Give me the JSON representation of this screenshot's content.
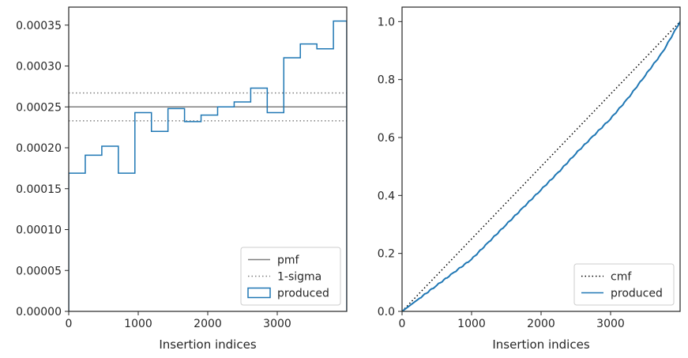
{
  "chart_data": [
    {
      "type": "histogram",
      "xlabel": "Insertion indices",
      "ylabel": "",
      "xlim": [
        0,
        4000
      ],
      "ylim": [
        0,
        0.000372
      ],
      "xticks": [
        "0",
        "1000",
        "2000",
        "3000"
      ],
      "yticks": [
        "0.00000",
        "0.00005",
        "0.00010",
        "0.00015",
        "0.00020",
        "0.00025",
        "0.00030",
        "0.00035"
      ],
      "bin_edges": [
        0,
        238,
        476,
        714,
        952,
        1190,
        1428,
        1666,
        1904,
        2142,
        2380,
        2618,
        2856,
        3094,
        3332,
        3570,
        3808,
        4000
      ],
      "series": [
        {
          "name": "produced",
          "style": "step",
          "color": "#1f77b4",
          "values": [
            0.000169,
            0.000191,
            0.000202,
            0.000169,
            0.000243,
            0.00022,
            0.000248,
            0.000232,
            0.00024,
            0.00025,
            0.000256,
            0.000273,
            0.000243,
            0.00031,
            0.000327,
            0.000321,
            0.000355
          ]
        }
      ],
      "hlines": [
        {
          "name": "pmf",
          "y": 0.00025,
          "style": "solid",
          "color": "#7f7f7f"
        },
        {
          "name": "1-sigma",
          "y": 0.000267,
          "style": "dotted",
          "color": "#7f7f7f"
        },
        {
          "name": "",
          "y": 0.000233,
          "style": "dotted",
          "color": "#7f7f7f"
        }
      ],
      "legend": {
        "placement": "lower-right",
        "entries": [
          "pmf",
          "1-sigma",
          "produced"
        ]
      },
      "grid": false
    },
    {
      "type": "line",
      "xlabel": "Insertion indices",
      "ylabel": "",
      "xlim": [
        0,
        4000
      ],
      "ylim": [
        0,
        1.05
      ],
      "xticks": [
        "0",
        "1000",
        "2000",
        "3000"
      ],
      "yticks": [
        "0.0",
        "0.2",
        "0.4",
        "0.6",
        "0.8",
        "1.0"
      ],
      "series": [
        {
          "name": "cmf",
          "style": "dotted",
          "color": "#000000",
          "x": [
            0,
            4000
          ],
          "y": [
            0,
            1.0
          ]
        },
        {
          "name": "produced",
          "style": "solid",
          "color": "#1f77b4",
          "x": [
            0,
            250,
            500,
            750,
            1000,
            1250,
            1500,
            1750,
            2000,
            2250,
            2500,
            2750,
            3000,
            3250,
            3500,
            3750,
            4000
          ],
          "y": [
            0,
            0.045,
            0.09,
            0.135,
            0.18,
            0.24,
            0.3,
            0.36,
            0.42,
            0.48,
            0.545,
            0.605,
            0.665,
            0.735,
            0.815,
            0.895,
            1.0
          ]
        }
      ],
      "legend": {
        "placement": "lower-right",
        "entries": [
          "cmf",
          "produced"
        ]
      },
      "grid": false
    }
  ]
}
